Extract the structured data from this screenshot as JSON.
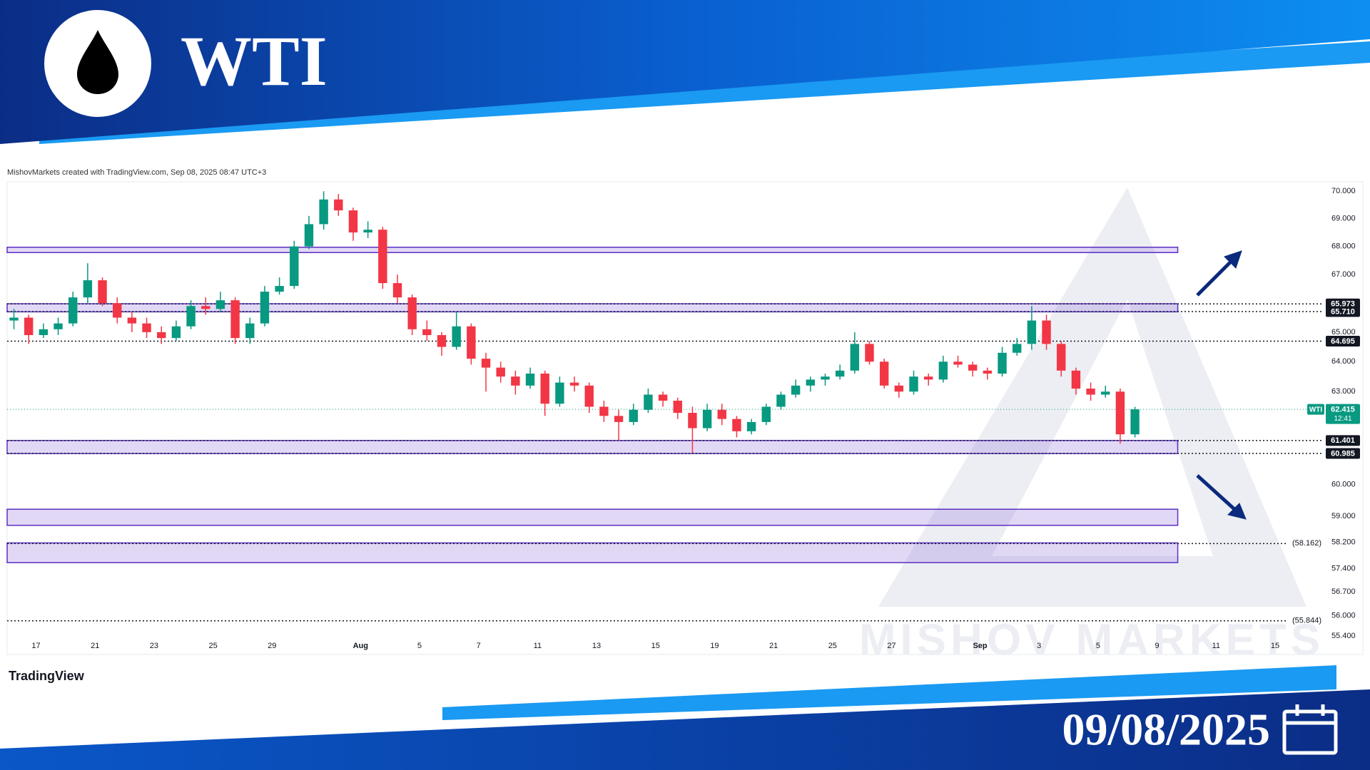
{
  "header": {
    "title": "WTI"
  },
  "credit": "MishovMarkets created with TradingView.com, Sep 08, 2025 08:47 UTC+3",
  "watermark": "MISHOV MARKETS",
  "footer": {
    "logo": "TradingView",
    "date": "09/08/2025"
  },
  "chart_data": {
    "type": "candlestick",
    "log_scale": true,
    "grid": false,
    "up_color": "#089981",
    "down_color": "#f23645",
    "xlim": [
      -0.98,
      43.5
    ],
    "ylim": [
      55.36,
      70.35
    ],
    "xticks": [
      {
        "value": 0,
        "label": "17"
      },
      {
        "value": 2,
        "label": "21"
      },
      {
        "value": 4,
        "label": "23"
      },
      {
        "value": 6,
        "label": "25"
      },
      {
        "value": 8,
        "label": "29"
      },
      {
        "value": 11,
        "label": "Aug"
      },
      {
        "value": 13,
        "label": "5"
      },
      {
        "value": 15,
        "label": "7"
      },
      {
        "value": 17,
        "label": "11"
      },
      {
        "value": 19,
        "label": "13"
      },
      {
        "value": 21,
        "label": "15"
      },
      {
        "value": 23,
        "label": "19"
      },
      {
        "value": 25,
        "label": "21"
      },
      {
        "value": 27,
        "label": "25"
      },
      {
        "value": 29,
        "label": "27"
      },
      {
        "value": 32,
        "label": "Sep"
      },
      {
        "value": 34,
        "label": "3"
      },
      {
        "value": 36,
        "label": "5"
      },
      {
        "value": 38,
        "label": "9"
      },
      {
        "value": 40,
        "label": "11"
      },
      {
        "value": 42,
        "label": "15"
      }
    ],
    "yticks": [
      {
        "value": 70,
        "label": "70.000"
      },
      {
        "value": 69,
        "label": "69.000"
      },
      {
        "value": 68,
        "label": "68.000"
      },
      {
        "value": 67,
        "label": "67.000"
      },
      {
        "value": 65,
        "label": "65.000"
      },
      {
        "value": 64,
        "label": "64.000"
      },
      {
        "value": 63,
        "label": "63.000"
      },
      {
        "value": 60,
        "label": "60.000"
      },
      {
        "value": 59,
        "label": "59.000"
      },
      {
        "value": 58.2,
        "label": "58.200"
      },
      {
        "value": 57.4,
        "label": "57.400"
      },
      {
        "value": 56.7,
        "label": "56.700"
      },
      {
        "value": 56,
        "label": "56.000"
      },
      {
        "value": 55.4,
        "label": "55.400"
      }
    ],
    "x": [
      -0.75,
      -0.25,
      0.25,
      0.75,
      1.25,
      1.75,
      2.25,
      2.75,
      3.25,
      3.75,
      4.25,
      4.75,
      5.25,
      5.75,
      6.25,
      6.75,
      7.25,
      7.75,
      8.25,
      8.75,
      9.25,
      9.75,
      10.25,
      10.75,
      11.25,
      11.75,
      12.25,
      12.75,
      13.25,
      13.75,
      14.25,
      14.75,
      15.25,
      15.75,
      16.25,
      16.75,
      17.25,
      17.75,
      18.25,
      18.75,
      19.25,
      19.75,
      20.25,
      20.75,
      21.25,
      21.75,
      22.25,
      22.75,
      23.25,
      23.75,
      24.25,
      24.75,
      25.25,
      25.75,
      26.25,
      26.75,
      27.25,
      27.75,
      28.25,
      28.75,
      29.25,
      29.75,
      30.25,
      30.75,
      31.25,
      31.75,
      32.25,
      32.75,
      33.25,
      33.75,
      34.25,
      34.75,
      35.25,
      35.75,
      36.25,
      36.75,
      37.25
    ],
    "open": [
      65.4,
      65.5,
      64.9,
      65.1,
      65.3,
      66.2,
      66.8,
      66.0,
      65.5,
      65.3,
      65.0,
      64.8,
      65.2,
      65.9,
      65.8,
      66.1,
      64.8,
      65.3,
      66.4,
      66.6,
      68.0,
      68.8,
      69.7,
      69.3,
      68.5,
      68.6,
      66.7,
      66.2,
      65.1,
      64.9,
      64.5,
      65.2,
      64.1,
      63.8,
      63.5,
      63.2,
      63.6,
      62.6,
      63.3,
      63.2,
      62.5,
      62.2,
      62.0,
      62.4,
      62.9,
      62.7,
      62.3,
      61.8,
      62.4,
      62.1,
      61.7,
      62.0,
      62.5,
      62.9,
      63.2,
      63.4,
      63.5,
      63.7,
      64.6,
      64.0,
      63.2,
      63.0,
      63.5,
      63.4,
      64.0,
      63.9,
      63.7,
      63.6,
      64.3,
      64.6,
      65.4,
      64.6,
      63.7,
      63.1,
      62.9,
      63.0,
      61.6
    ],
    "high": [
      65.8,
      65.6,
      65.3,
      65.5,
      66.4,
      67.4,
      66.9,
      66.2,
      65.7,
      65.5,
      65.2,
      65.4,
      66.1,
      66.2,
      66.4,
      66.2,
      65.5,
      66.6,
      66.9,
      68.2,
      69.1,
      70.0,
      69.9,
      69.4,
      68.9,
      68.7,
      67.0,
      66.3,
      65.4,
      65.0,
      65.7,
      65.3,
      64.3,
      64.0,
      63.7,
      63.8,
      63.7,
      63.5,
      63.5,
      63.3,
      62.7,
      62.4,
      62.6,
      63.1,
      63.0,
      62.8,
      62.5,
      62.6,
      62.6,
      62.2,
      62.1,
      62.6,
      63.0,
      63.4,
      63.5,
      63.6,
      63.9,
      65.0,
      64.7,
      64.1,
      63.3,
      63.7,
      63.6,
      64.2,
      64.2,
      64.0,
      63.8,
      64.5,
      64.8,
      65.9,
      65.6,
      64.7,
      63.8,
      63.3,
      63.2,
      63.1,
      62.5
    ],
    "low": [
      65.1,
      64.6,
      64.8,
      64.9,
      65.2,
      66.0,
      65.9,
      65.3,
      65.0,
      64.8,
      64.6,
      64.7,
      65.1,
      65.6,
      65.7,
      64.6,
      64.6,
      65.2,
      66.3,
      66.5,
      67.9,
      68.6,
      69.1,
      68.2,
      68.3,
      66.5,
      66.0,
      64.9,
      64.7,
      64.2,
      64.4,
      63.9,
      63.0,
      63.3,
      62.9,
      63.1,
      62.2,
      62.5,
      63.0,
      62.3,
      62.0,
      61.4,
      61.9,
      62.3,
      62.5,
      62.1,
      61.0,
      61.7,
      61.9,
      61.5,
      61.6,
      61.9,
      62.4,
      62.8,
      63.0,
      63.2,
      63.4,
      63.6,
      63.9,
      63.1,
      62.8,
      62.9,
      63.2,
      63.3,
      63.8,
      63.5,
      63.4,
      63.5,
      64.2,
      64.4,
      64.4,
      63.5,
      62.9,
      62.7,
      62.8,
      61.3,
      61.5
    ],
    "close": [
      65.5,
      64.9,
      65.1,
      65.3,
      66.2,
      66.8,
      66.0,
      65.5,
      65.3,
      65.0,
      64.8,
      65.2,
      65.9,
      65.8,
      66.1,
      64.8,
      65.3,
      66.4,
      66.6,
      68.0,
      68.8,
      69.7,
      69.3,
      68.5,
      68.6,
      66.7,
      66.2,
      65.1,
      64.9,
      64.5,
      65.2,
      64.1,
      63.8,
      63.5,
      63.2,
      63.6,
      62.6,
      63.3,
      63.2,
      62.5,
      62.2,
      62.0,
      62.4,
      62.9,
      62.7,
      62.3,
      61.8,
      62.4,
      62.1,
      61.7,
      62.0,
      62.5,
      62.9,
      63.2,
      63.4,
      63.5,
      63.7,
      64.6,
      64.0,
      63.2,
      63.0,
      63.5,
      63.4,
      64.0,
      63.9,
      63.7,
      63.6,
      64.3,
      64.6,
      65.4,
      64.6,
      63.7,
      63.1,
      62.9,
      63.0,
      61.6,
      62.415
    ],
    "zones": [
      {
        "x": [
          -0.98,
          38.7
        ],
        "y": [
          67.78,
          67.97
        ]
      },
      {
        "x": [
          -0.98,
          38.7
        ],
        "y": [
          65.7,
          65.98
        ]
      },
      {
        "x": [
          -0.98,
          38.7
        ],
        "y": [
          60.98,
          61.4
        ]
      },
      {
        "x": [
          -0.98,
          38.7
        ],
        "y": [
          58.72,
          59.22
        ]
      },
      {
        "x": [
          -0.98,
          38.7
        ],
        "y": [
          57.58,
          58.18
        ]
      }
    ],
    "zone_color": "#9c7fe0",
    "levels": [
      65.973,
      {
        "value": 65.71,
        "label": "65.710"
      },
      64.695,
      61.401,
      60.985
    ],
    "projected_levels": [
      {
        "value": 58.162,
        "label": "(58.162)"
      },
      {
        "value": 55.844,
        "label": "(55.844)"
      }
    ],
    "symbol": "WTI",
    "last_price": 62.415,
    "countdown": "12:41"
  }
}
